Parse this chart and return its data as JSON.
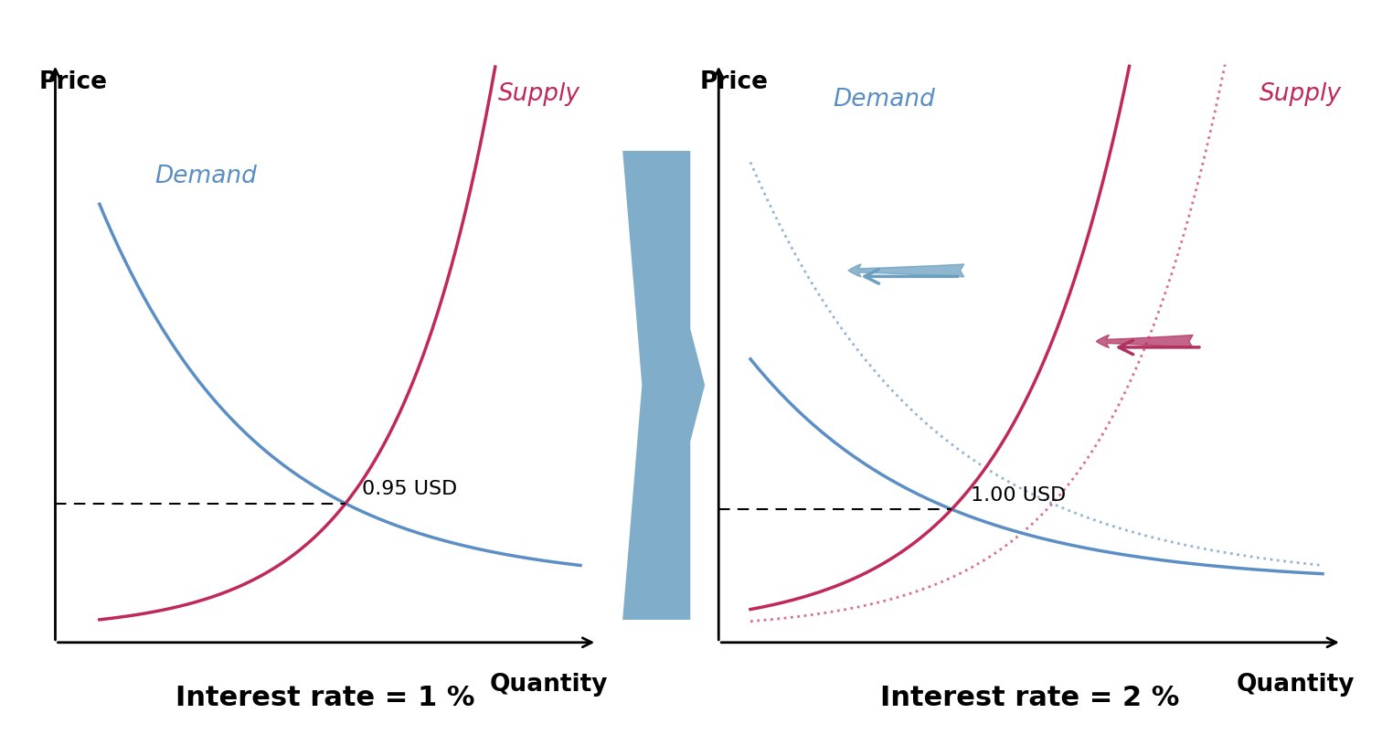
{
  "bg_color": "#ffffff",
  "demand_color": "#5b8ec4",
  "supply_color": "#c0285a",
  "arrow_blue_fill": "#6a9fc0",
  "arrow_red_fill": "#b03060",
  "label_fontsize": 19,
  "axis_label_fontsize": 19,
  "price_label": "Price",
  "quantity_label": "Quantity",
  "demand_label": "Demand",
  "supply_label": "Supply",
  "eq1_label": "0.95 USD",
  "eq2_label": "1.00 USD",
  "rate1_label": "Interest rate = 1 %",
  "rate2_label": "Interest rate = 2 %",
  "rate_fontsize": 22,
  "connector_color": "#6a9fc0"
}
